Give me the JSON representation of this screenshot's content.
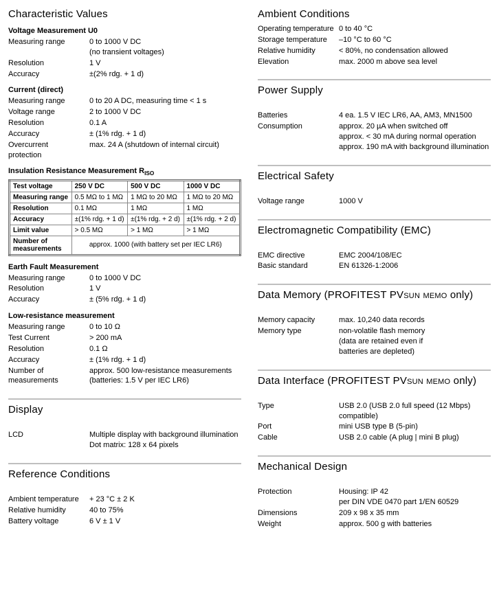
{
  "left": {
    "characteristic": {
      "title": "Characteristic Values",
      "voltage_u0": {
        "title": "Voltage Measurement U0",
        "rows": [
          {
            "label": "Measuring range",
            "value": "0 to 1000 V DC\n(no transient voltages)"
          },
          {
            "label": "Resolution",
            "value": "1 V"
          },
          {
            "label": "Accuracy",
            "value": "±(2% rdg. + 1 d)"
          }
        ]
      },
      "current": {
        "title": "Current (direct)",
        "rows": [
          {
            "label": "Measuring range",
            "value": "0 to 20 A DC, measuring time < 1 s"
          },
          {
            "label": "Voltage range",
            "value": "2 to 1000 V DC"
          },
          {
            "label": "Resolution",
            "value": "0.1 A"
          },
          {
            "label": "Accuracy",
            "value": "± (1% rdg. + 1 d)"
          },
          {
            "label": "Overcurrent\nprotection",
            "value": "max. 24 A (shutdown of internal circuit)"
          }
        ]
      },
      "riso": {
        "title_html": "Insulation Resistance Measurement R<sub>ISO</sub>",
        "headers": [
          "Test voltage",
          "250 V DC",
          "500 V DC",
          "1000 V DC"
        ],
        "rows": [
          [
            "Measuring range",
            "0.5 MΩ to 1 MΩ",
            "1 MΩ to 20 MΩ",
            "1 MΩ to 20 MΩ"
          ],
          [
            "Resolution",
            "0.1 MΩ",
            "1 MΩ",
            "1 MΩ"
          ],
          [
            "Accuracy",
            "±(1% rdg. + 1 d)",
            "±(1% rdg. + 2 d)",
            "±(1% rdg. + 2 d)"
          ],
          [
            "Limit value",
            "> 0.5 MΩ",
            "> 1 MΩ",
            "> 1 MΩ"
          ]
        ],
        "footer_label": "Number of\nmeasurements",
        "footer_value": "approx. 1000 (with battery set per IEC LR6)"
      },
      "earth_fault": {
        "title": "Earth Fault Measurement",
        "rows": [
          {
            "label": "Measuring range",
            "value": "0 to 1000 V DC"
          },
          {
            "label": "Resolution",
            "value": "1 V"
          },
          {
            "label": "Accuracy",
            "value": "± (5% rdg. + 1 d)"
          }
        ]
      },
      "low_res": {
        "title": "Low-resistance measurement",
        "rows": [
          {
            "label": "Measuring range",
            "value": "0 to 10 Ω"
          },
          {
            "label": "Test Current",
            "value": "> 200 mA"
          },
          {
            "label": "Resolution",
            "value": "0.1 Ω"
          },
          {
            "label": "Accuracy",
            "value": "± (1% rdg. + 1 d)"
          },
          {
            "label": "Number of\nmeasurements",
            "value": "approx. 500 low-resistance measurements\n(batteries: 1.5 V per IEC LR6)"
          }
        ]
      }
    },
    "display": {
      "title": "Display",
      "rows": [
        {
          "label": "LCD",
          "value": "Multiple display with background illumination\nDot matrix: 128 x 64 pixels"
        }
      ]
    },
    "reference": {
      "title": "Reference Conditions",
      "rows": [
        {
          "label": "Ambient temperature",
          "value": "+ 23 °C ± 2 K"
        },
        {
          "label": "Relative humidity",
          "value": "40 to 75%"
        },
        {
          "label": "Battery voltage",
          "value": "6 V ± 1 V"
        }
      ]
    }
  },
  "right": {
    "ambient": {
      "title": "Ambient Conditions",
      "rows": [
        {
          "label": "Operating temperature",
          "value": "0 to 40 °C"
        },
        {
          "label": "Storage temperature",
          "value": "–10 °C to 60 °C"
        },
        {
          "label": "Relative humidity",
          "value": "< 80%, no condensation allowed"
        },
        {
          "label": "Elevation",
          "value": "max. 2000 m above sea level"
        }
      ]
    },
    "power": {
      "title": "Power Supply",
      "rows": [
        {
          "label": "Batteries",
          "value": "4 ea. 1.5 V IEC LR6, AA, AM3, MN1500"
        },
        {
          "label": "Consumption",
          "value": "approx. 20 µA when switched off\napprox. < 30 mA during normal operation\napprox. 190 mA with background illumination"
        }
      ]
    },
    "electrical": {
      "title": "Electrical Safety",
      "rows": [
        {
          "label": "Voltage range",
          "value": "1000 V"
        }
      ]
    },
    "emc": {
      "title": "Electromagnetic Compatibility (EMC)",
      "rows": [
        {
          "label": "EMC directive",
          "value": "EMC 2004/108/EC"
        },
        {
          "label": "Basic standard",
          "value": "EN 61326-1:2006"
        }
      ]
    },
    "memory": {
      "title_html": "Data Memory (PROFITEST PV<span class=\"smallcaps\">sun memo</span> only)",
      "rows": [
        {
          "label": "Memory capacity",
          "value": "max. 10,240 data records"
        },
        {
          "label": "Memory type",
          "value": "non-volatile flash memory\n(data are retained even if\nbatteries are depleted)"
        }
      ]
    },
    "interface": {
      "title_html": "Data Interface (PROFITEST PV<span class=\"smallcaps\">sun memo</span> only)",
      "rows": [
        {
          "label": "Type",
          "value": "USB 2.0 (USB 2.0 full speed (12 Mbps) compatible)"
        },
        {
          "label": "Port",
          "value": "mini USB type B (5-pin)"
        },
        {
          "label": "Cable",
          "value": "USB 2.0 cable (A plug | mini B plug)"
        }
      ]
    },
    "mechanical": {
      "title": "Mechanical Design",
      "rows": [
        {
          "label": "Protection",
          "value": "Housing: IP 42\nper DIN VDE 0470 part 1/EN 60529"
        },
        {
          "label": "Dimensions",
          "value": "209 x 98 x 35 mm"
        },
        {
          "label": "Weight",
          "value": "approx. 500 g with batteries"
        }
      ]
    }
  }
}
